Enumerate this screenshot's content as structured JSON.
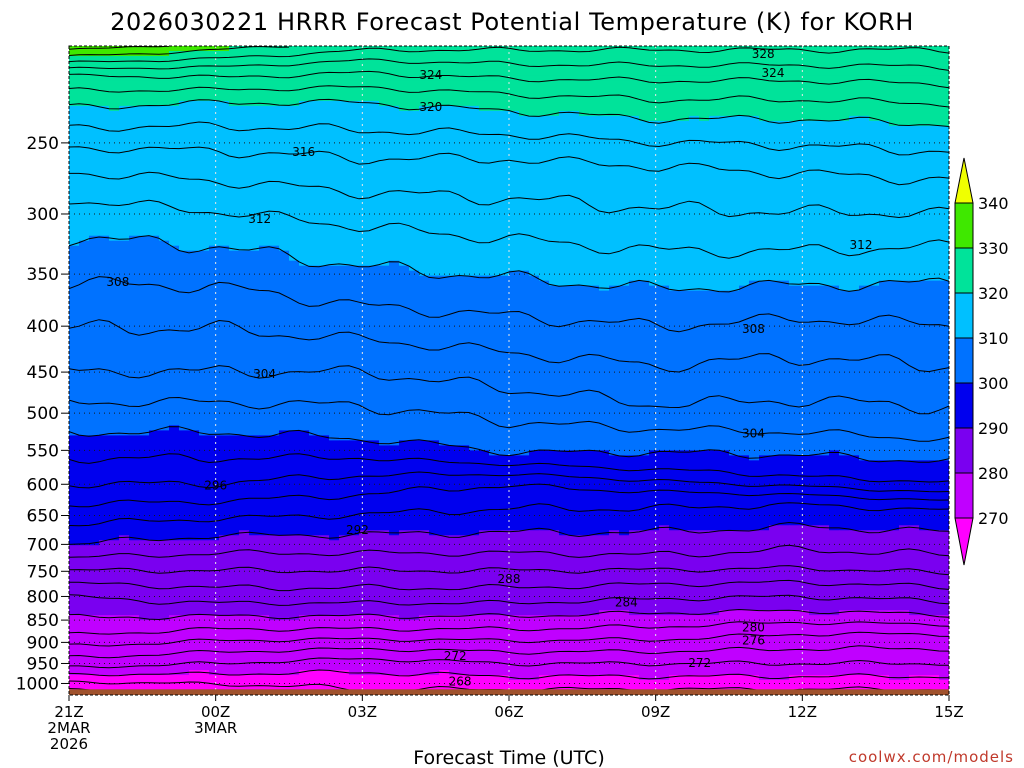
{
  "chart_data": {
    "type": "heatmap",
    "title": "2026030221 HRRR Forecast Potential Temperature (K) for KORH",
    "xlabel": "Forecast Time (UTC)",
    "credit": "coolwx.com/models",
    "x_ticks": [
      {
        "lines": [
          "21Z",
          "2MAR",
          "2026"
        ]
      },
      {
        "lines": [
          "00Z",
          "3MAR"
        ]
      },
      {
        "lines": [
          "03Z"
        ]
      },
      {
        "lines": [
          "06Z"
        ]
      },
      {
        "lines": [
          "09Z"
        ]
      },
      {
        "lines": [
          "12Z"
        ]
      },
      {
        "lines": [
          "15Z"
        ]
      }
    ],
    "x_hours": [
      0,
      3,
      6,
      9,
      12,
      15,
      18
    ],
    "y_scale": "log-pressure",
    "y_ticks": [
      250,
      300,
      350,
      400,
      450,
      500,
      550,
      600,
      650,
      700,
      750,
      800,
      850,
      900,
      950,
      1000
    ],
    "ylim_hPa": [
      1030,
      195
    ],
    "colorbar": {
      "levels": [
        270,
        280,
        290,
        300,
        310,
        320,
        330,
        340
      ],
      "colors": [
        "#ff00ff",
        "#c000ff",
        "#7a00f0",
        "#0000ee",
        "#0072ff",
        "#00c0ff",
        "#00e39a",
        "#3fe800",
        "#f0ff00"
      ]
    },
    "ground_color": "#a0522d",
    "contour_interval_K": 2,
    "profiles": [
      {
        "hour": 0,
        "levels": [
          {
            "p": 1015,
            "theta": 266
          },
          {
            "p": 950,
            "theta": 273
          },
          {
            "p": 870,
            "theta": 279
          },
          {
            "p": 800,
            "theta": 282
          },
          {
            "p": 700,
            "theta": 290
          },
          {
            "p": 600,
            "theta": 296
          },
          {
            "p": 525,
            "theta": 300
          },
          {
            "p": 450,
            "theta": 304
          },
          {
            "p": 380,
            "theta": 307
          },
          {
            "p": 300,
            "theta": 311
          },
          {
            "p": 260,
            "theta": 315
          },
          {
            "p": 228,
            "theta": 320
          },
          {
            "p": 210,
            "theta": 324
          },
          {
            "p": 197,
            "theta": 332
          }
        ]
      },
      {
        "hour": 3,
        "levels": [
          {
            "p": 1015,
            "theta": 267
          },
          {
            "p": 950,
            "theta": 272
          },
          {
            "p": 870,
            "theta": 278
          },
          {
            "p": 800,
            "theta": 283
          },
          {
            "p": 700,
            "theta": 289
          },
          {
            "p": 600,
            "theta": 296
          },
          {
            "p": 525,
            "theta": 300
          },
          {
            "p": 450,
            "theta": 304
          },
          {
            "p": 380,
            "theta": 307
          },
          {
            "p": 310,
            "theta": 311
          },
          {
            "p": 255,
            "theta": 316
          },
          {
            "p": 225,
            "theta": 320
          },
          {
            "p": 208,
            "theta": 325
          },
          {
            "p": 197,
            "theta": 330
          }
        ]
      },
      {
        "hour": 6,
        "levels": [
          {
            "p": 1015,
            "theta": 268
          },
          {
            "p": 950,
            "theta": 271
          },
          {
            "p": 870,
            "theta": 278
          },
          {
            "p": 800,
            "theta": 283
          },
          {
            "p": 700,
            "theta": 289
          },
          {
            "p": 600,
            "theta": 295
          },
          {
            "p": 535,
            "theta": 300
          },
          {
            "p": 450,
            "theta": 304
          },
          {
            "p": 380,
            "theta": 308
          },
          {
            "p": 310,
            "theta": 312
          },
          {
            "p": 260,
            "theta": 316
          },
          {
            "p": 225,
            "theta": 320
          },
          {
            "p": 205,
            "theta": 325
          },
          {
            "p": 197,
            "theta": 328
          }
        ]
      },
      {
        "hour": 9,
        "levels": [
          {
            "p": 1015,
            "theta": 268
          },
          {
            "p": 950,
            "theta": 272
          },
          {
            "p": 870,
            "theta": 278
          },
          {
            "p": 800,
            "theta": 283
          },
          {
            "p": 700,
            "theta": 289
          },
          {
            "p": 600,
            "theta": 294
          },
          {
            "p": 555,
            "theta": 300
          },
          {
            "p": 470,
            "theta": 304
          },
          {
            "p": 390,
            "theta": 308
          },
          {
            "p": 320,
            "theta": 312
          },
          {
            "p": 260,
            "theta": 316
          },
          {
            "p": 230,
            "theta": 320
          },
          {
            "p": 212,
            "theta": 324
          },
          {
            "p": 197,
            "theta": 328
          }
        ]
      },
      {
        "hour": 12,
        "levels": [
          {
            "p": 1015,
            "theta": 268
          },
          {
            "p": 950,
            "theta": 272
          },
          {
            "p": 880,
            "theta": 277
          },
          {
            "p": 820,
            "theta": 281
          },
          {
            "p": 720,
            "theta": 288
          },
          {
            "p": 620,
            "theta": 293
          },
          {
            "p": 570,
            "theta": 299
          },
          {
            "p": 490,
            "theta": 304
          },
          {
            "p": 400,
            "theta": 308
          },
          {
            "p": 330,
            "theta": 312
          },
          {
            "p": 265,
            "theta": 316
          },
          {
            "p": 235,
            "theta": 320
          },
          {
            "p": 213,
            "theta": 324
          },
          {
            "p": 197,
            "theta": 328
          }
        ]
      },
      {
        "hour": 15,
        "levels": [
          {
            "p": 1015,
            "theta": 268
          },
          {
            "p": 950,
            "theta": 272
          },
          {
            "p": 880,
            "theta": 276
          },
          {
            "p": 830,
            "theta": 280
          },
          {
            "p": 730,
            "theta": 287
          },
          {
            "p": 630,
            "theta": 292
          },
          {
            "p": 590,
            "theta": 298
          },
          {
            "p": 510,
            "theta": 303
          },
          {
            "p": 410,
            "theta": 307
          },
          {
            "p": 330,
            "theta": 312
          },
          {
            "p": 270,
            "theta": 316
          },
          {
            "p": 235,
            "theta": 320
          },
          {
            "p": 213,
            "theta": 324
          },
          {
            "p": 197,
            "theta": 328
          }
        ]
      },
      {
        "hour": 18,
        "levels": [
          {
            "p": 1015,
            "theta": 268
          },
          {
            "p": 950,
            "theta": 272
          },
          {
            "p": 880,
            "theta": 276
          },
          {
            "p": 840,
            "theta": 280
          },
          {
            "p": 740,
            "theta": 287
          },
          {
            "p": 640,
            "theta": 292
          },
          {
            "p": 600,
            "theta": 298
          },
          {
            "p": 520,
            "theta": 303
          },
          {
            "p": 420,
            "theta": 307
          },
          {
            "p": 340,
            "theta": 311
          },
          {
            "p": 275,
            "theta": 316
          },
          {
            "p": 238,
            "theta": 320
          },
          {
            "p": 215,
            "theta": 324
          },
          {
            "p": 197,
            "theta": 328
          }
        ]
      }
    ],
    "contour_labels": [
      {
        "text": "328",
        "hour": 14.2,
        "p": 199
      },
      {
        "text": "324",
        "hour": 7.4,
        "p": 210
      },
      {
        "text": "324",
        "hour": 14.4,
        "p": 209
      },
      {
        "text": "320",
        "hour": 7.4,
        "p": 228
      },
      {
        "text": "316",
        "hour": 4.8,
        "p": 256
      },
      {
        "text": "312",
        "hour": 3.9,
        "p": 304
      },
      {
        "text": "312",
        "hour": 16.2,
        "p": 325
      },
      {
        "text": "308",
        "hour": 1.0,
        "p": 357
      },
      {
        "text": "308",
        "hour": 14.0,
        "p": 403
      },
      {
        "text": "304",
        "hour": 4.0,
        "p": 452
      },
      {
        "text": "304",
        "hour": 14.0,
        "p": 527
      },
      {
        "text": "296",
        "hour": 3.0,
        "p": 602
      },
      {
        "text": "292",
        "hour": 5.9,
        "p": 675
      },
      {
        "text": "288",
        "hour": 9.0,
        "p": 765
      },
      {
        "text": "284",
        "hour": 11.4,
        "p": 812
      },
      {
        "text": "280",
        "hour": 14.0,
        "p": 866
      },
      {
        "text": "276",
        "hour": 14.0,
        "p": 896
      },
      {
        "text": "272",
        "hour": 7.9,
        "p": 932
      },
      {
        "text": "272",
        "hour": 12.9,
        "p": 949
      },
      {
        "text": "268",
        "hour": 8.0,
        "p": 995
      }
    ]
  }
}
